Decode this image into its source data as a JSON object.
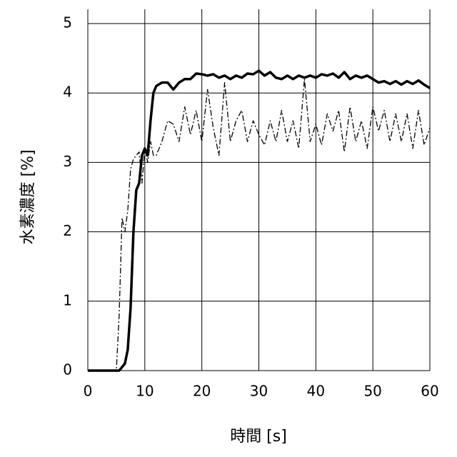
{
  "chart_data": {
    "type": "line",
    "x_label": "時間 [s]",
    "y_label": "水素濃度 [%]",
    "x": [
      0,
      5,
      5.5,
      6,
      6.5,
      7,
      7.5,
      8,
      8.5,
      9,
      9.5,
      10,
      10.5,
      11,
      11.5,
      12,
      13,
      14,
      15,
      16,
      17,
      18,
      19,
      20,
      21,
      22,
      23,
      24,
      25,
      26,
      27,
      28,
      29,
      30,
      31,
      32,
      33,
      34,
      35,
      36,
      37,
      38,
      39,
      40,
      41,
      42,
      43,
      44,
      45,
      46,
      47,
      48,
      49,
      50,
      51,
      52,
      53,
      54,
      55,
      56,
      57,
      58,
      59,
      60
    ],
    "series": [
      {
        "color": "#000000",
        "line_style": "solid",
        "line_width": 3.5,
        "values": [
          0,
          0,
          0,
          0.05,
          0.1,
          0.3,
          0.9,
          2.0,
          2.6,
          2.7,
          3.1,
          3.2,
          3.1,
          3.6,
          4.0,
          4.1,
          4.15,
          4.15,
          4.05,
          4.15,
          4.2,
          4.2,
          4.28,
          4.27,
          4.25,
          4.27,
          4.22,
          4.25,
          4.2,
          4.25,
          4.22,
          4.28,
          4.27,
          4.32,
          4.25,
          4.3,
          4.22,
          4.2,
          4.25,
          4.2,
          4.25,
          4.22,
          4.25,
          4.22,
          4.27,
          4.25,
          4.28,
          4.22,
          4.3,
          4.2,
          4.25,
          4.22,
          4.25,
          4.2,
          4.15,
          4.17,
          4.13,
          4.17,
          4.12,
          4.17,
          4.13,
          4.18,
          4.12,
          4.07
        ]
      },
      {
        "color": "#000000",
        "line_style": "dashdot",
        "line_width": 1.3,
        "values": [
          0,
          0,
          0.8,
          2.2,
          2.0,
          2.3,
          2.9,
          3.05,
          3.1,
          3.15,
          2.7,
          3.2,
          3.0,
          3.3,
          3.1,
          3.1,
          3.3,
          3.6,
          3.55,
          3.3,
          3.8,
          3.4,
          3.75,
          3.3,
          4.05,
          3.5,
          3.1,
          4.15,
          3.3,
          3.6,
          3.75,
          3.3,
          3.6,
          3.4,
          3.25,
          3.6,
          3.3,
          3.75,
          3.3,
          3.6,
          3.2,
          4.2,
          3.3,
          3.55,
          3.25,
          3.7,
          3.45,
          3.75,
          3.15,
          3.8,
          3.3,
          3.6,
          3.2,
          3.8,
          3.45,
          3.75,
          3.3,
          3.7,
          3.3,
          3.7,
          3.2,
          3.75,
          3.25,
          3.5
        ]
      }
    ],
    "xlim": [
      0,
      60
    ],
    "xticks": [
      0,
      10,
      20,
      30,
      40,
      50,
      60
    ],
    "ylim": [
      0,
      5
    ],
    "yticks": [
      0,
      1,
      2,
      3,
      4,
      5
    ],
    "grid": true
  }
}
